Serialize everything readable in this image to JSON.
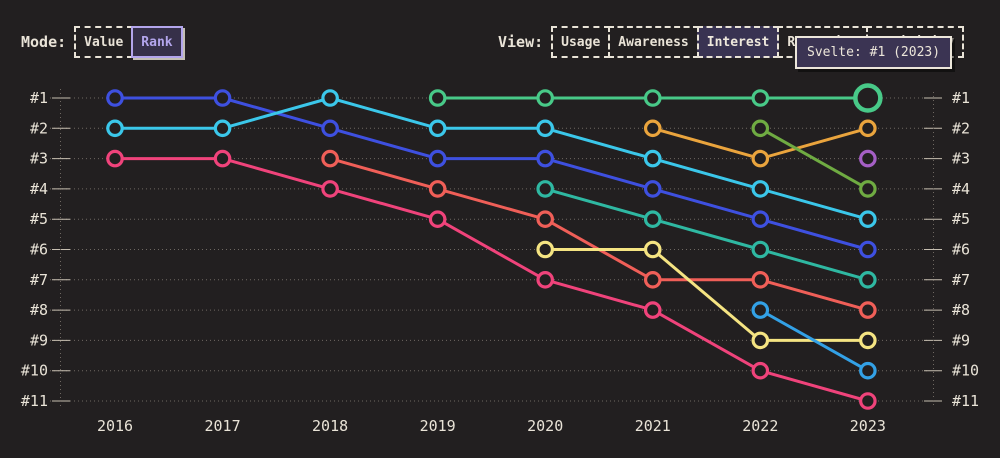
{
  "controls": {
    "mode": {
      "label": "Mode:",
      "options": [
        "Value",
        "Rank"
      ],
      "selected": "Rank"
    },
    "view": {
      "label": "View:",
      "options": [
        "Usage",
        "Awareness",
        "Interest",
        "Retention",
        "Positivity"
      ],
      "selected": "Interest"
    }
  },
  "tooltip": {
    "text": "Svelte: #1 (2023)"
  },
  "ui_colors": {
    "background": "#221f20",
    "text_cream": "#e9e3d7",
    "accent_purple": "#b3a5ec",
    "tooltip_bg": "#3b3453",
    "selected_view_bg": "#393352",
    "gridline": "#6f6862",
    "tick": "#c7bfb1"
  },
  "chart_data": {
    "type": "line",
    "variant": "bump-rank",
    "title": "",
    "xlabel": "",
    "ylabel": "",
    "x_labels": [
      "2016",
      "2017",
      "2018",
      "2019",
      "2020",
      "2021",
      "2022",
      "2023"
    ],
    "y_axis": {
      "type": "rank",
      "labels": [
        "#1",
        "#2",
        "#3",
        "#4",
        "#5",
        "#6",
        "#7",
        "#8",
        "#9",
        "#10",
        "#11"
      ],
      "best_at_top": true,
      "shown_on_both_sides": true
    },
    "grid": "dotted horizontal rows, dotted vertical axis line on each side with solid tick marks",
    "legend": "none",
    "highlight": {
      "series": "Svelte",
      "year": 2023,
      "rank": 1
    },
    "series": [
      {
        "id": "blue",
        "name": "",
        "color": "#3e50e0",
        "points": [
          [
            2016,
            1
          ],
          [
            2017,
            1
          ],
          [
            2018,
            2
          ],
          [
            2019,
            3
          ],
          [
            2020,
            3
          ],
          [
            2021,
            4
          ],
          [
            2022,
            5
          ],
          [
            2023,
            6
          ]
        ]
      },
      {
        "id": "cyan",
        "name": "",
        "color": "#3bc7ea",
        "points": [
          [
            2016,
            2
          ],
          [
            2017,
            2
          ],
          [
            2018,
            1
          ],
          [
            2019,
            2
          ],
          [
            2020,
            2
          ],
          [
            2021,
            3
          ],
          [
            2022,
            4
          ],
          [
            2023,
            5
          ]
        ]
      },
      {
        "id": "pink",
        "name": "",
        "color": "#f0437b",
        "points": [
          [
            2016,
            3
          ],
          [
            2017,
            3
          ],
          [
            2018,
            4
          ],
          [
            2019,
            5
          ],
          [
            2020,
            7
          ],
          [
            2021,
            8
          ],
          [
            2022,
            10
          ],
          [
            2023,
            11
          ]
        ]
      },
      {
        "id": "salmon",
        "name": "",
        "color": "#f05f58",
        "points": [
          [
            2018,
            3
          ],
          [
            2019,
            4
          ],
          [
            2020,
            5
          ],
          [
            2021,
            7
          ],
          [
            2022,
            7
          ],
          [
            2023,
            8
          ]
        ]
      },
      {
        "id": "green",
        "name": "Svelte",
        "color": "#48c988",
        "points": [
          [
            2019,
            1
          ],
          [
            2020,
            1
          ],
          [
            2021,
            1
          ],
          [
            2022,
            1
          ],
          [
            2023,
            1
          ]
        ],
        "highlight_point": [
          2023,
          1
        ]
      },
      {
        "id": "teal",
        "name": "",
        "color": "#2fb8a2",
        "points": [
          [
            2020,
            4
          ],
          [
            2021,
            5
          ],
          [
            2022,
            6
          ],
          [
            2023,
            7
          ]
        ]
      },
      {
        "id": "yellow",
        "name": "",
        "color": "#f5e482",
        "points": [
          [
            2020,
            6
          ],
          [
            2021,
            6
          ],
          [
            2022,
            9
          ],
          [
            2023,
            9
          ]
        ]
      },
      {
        "id": "orange",
        "name": "",
        "color": "#eaa43d",
        "points": [
          [
            2021,
            2
          ],
          [
            2022,
            3
          ],
          [
            2023,
            2
          ]
        ]
      },
      {
        "id": "olive",
        "name": "",
        "color": "#6fab42",
        "points": [
          [
            2022,
            2
          ],
          [
            2023,
            4
          ]
        ]
      },
      {
        "id": "skyblue",
        "name": "",
        "color": "#33a1e6",
        "points": [
          [
            2022,
            8
          ],
          [
            2023,
            10
          ]
        ]
      },
      {
        "id": "purple",
        "name": "",
        "color": "#a55fc5",
        "points": [
          [
            2023,
            3
          ]
        ]
      }
    ]
  }
}
